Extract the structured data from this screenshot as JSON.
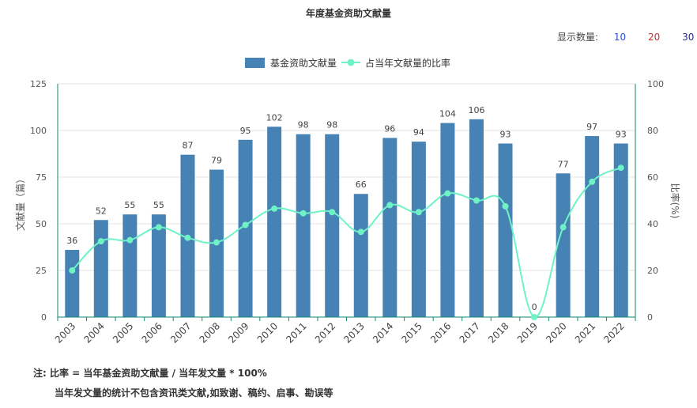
{
  "display_count": {
    "label": "显示数量:",
    "options": [
      {
        "value": "10",
        "color": "#2a4fd6"
      },
      {
        "value": "20",
        "color": "#d62a2a"
      },
      {
        "value": "30",
        "color": "#2a2a8a"
      }
    ]
  },
  "notes": {
    "line1": "注:  比率 = 当年基金资助文献量 / 当年发文量 * 100%",
    "line2": "当年发文量的统计不包含资讯类文献,如致谢、稿约、启事、勘误等"
  },
  "colors": {
    "bar": "#4682b4",
    "line": "#6ff3c6",
    "axis": "#0e8a73",
    "grid": "#e3e3e3"
  },
  "chart_data": {
    "type": "bar",
    "title": "年度基金资助文献量",
    "categories": [
      "2003",
      "2004",
      "2005",
      "2006",
      "2007",
      "2008",
      "2009",
      "2010",
      "2011",
      "2012",
      "2013",
      "2014",
      "2015",
      "2016",
      "2017",
      "2018",
      "2019",
      "2020",
      "2021",
      "2022"
    ],
    "series": [
      {
        "name": "基金资助文献量",
        "type": "bar",
        "axis": "left",
        "values": [
          36,
          52,
          55,
          55,
          87,
          79,
          95,
          102,
          98,
          98,
          66,
          96,
          94,
          104,
          106,
          93,
          0,
          77,
          97,
          93
        ]
      },
      {
        "name": "占当年文献量的比率",
        "type": "line",
        "axis": "right",
        "values": [
          20,
          32.5,
          33,
          38.5,
          34,
          32,
          39.5,
          46.5,
          44.5,
          45,
          36.5,
          48,
          45,
          53,
          50,
          47.5,
          0,
          38.5,
          58,
          64
        ]
      }
    ],
    "ylabel": "文献量（篇）",
    "y2label": "比率(%)",
    "ylim": [
      0,
      125
    ],
    "y2lim": [
      0,
      100
    ],
    "yticks": [
      0,
      25,
      50,
      75,
      100,
      125
    ],
    "y2ticks": [
      0,
      20,
      40,
      60,
      80,
      100
    ],
    "grid": true,
    "legend_position": "top"
  }
}
